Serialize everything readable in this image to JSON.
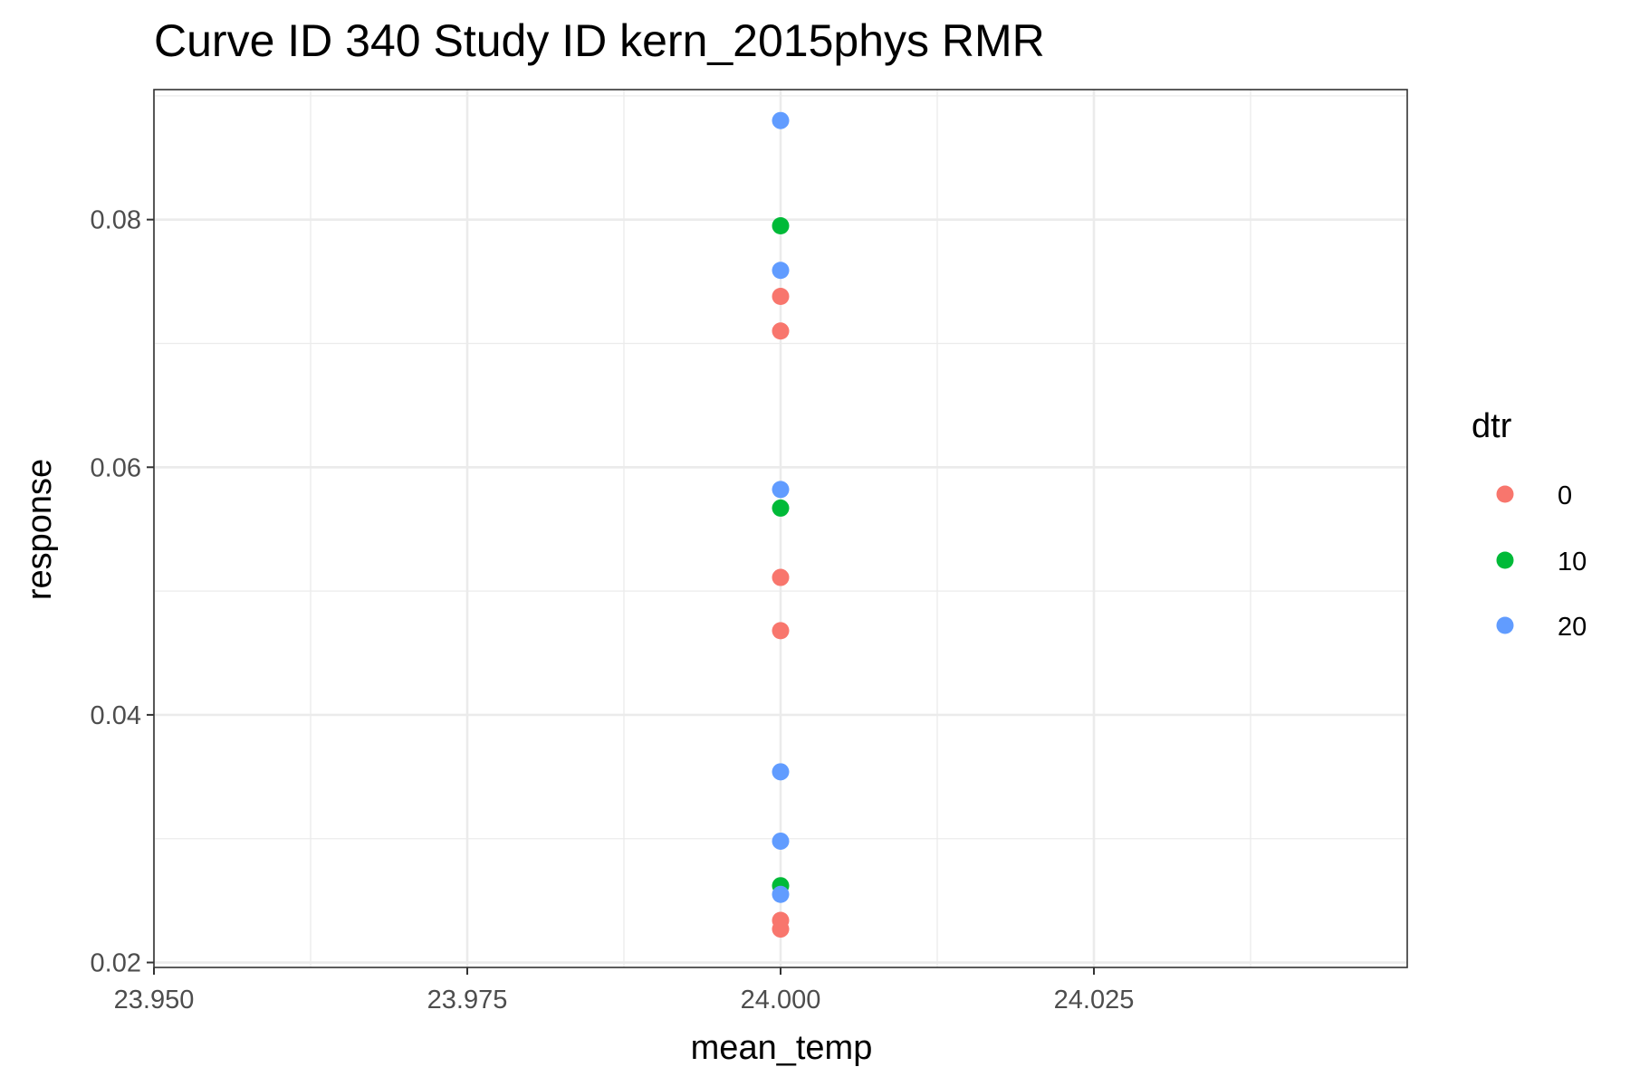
{
  "chart_data": {
    "type": "scatter",
    "title": "Curve ID 340 Study ID kern_2015phys RMR",
    "xlabel": "mean_temp",
    "ylabel": "response",
    "xlim": [
      23.95,
      24.05
    ],
    "ylim": [
      0.02,
      0.09
    ],
    "x_ticks": [
      "23.950",
      "23.975",
      "24.000",
      "24.025"
    ],
    "x_tick_values": [
      23.95,
      23.975,
      24.0,
      24.025
    ],
    "y_ticks": [
      "0.02",
      "0.04",
      "0.06",
      "0.08"
    ],
    "y_tick_values": [
      0.02,
      0.04,
      0.06,
      0.08
    ],
    "grid": true,
    "legend": {
      "title": "dtr",
      "position": "right"
    },
    "series": [
      {
        "name": "0",
        "color": "#F8766D",
        "points": [
          [
            24.0,
            0.0738
          ],
          [
            24.0,
            0.071
          ],
          [
            24.0,
            0.0511
          ],
          [
            24.0,
            0.0468
          ],
          [
            24.0,
            0.0234
          ],
          [
            24.0,
            0.0227
          ]
        ]
      },
      {
        "name": "10",
        "color": "#00BA38",
        "points": [
          [
            24.0,
            0.0795
          ],
          [
            24.0,
            0.0567
          ],
          [
            24.0,
            0.0262
          ]
        ]
      },
      {
        "name": "20",
        "color": "#619CFF",
        "points": [
          [
            24.0,
            0.088
          ],
          [
            24.0,
            0.0759
          ],
          [
            24.0,
            0.0582
          ],
          [
            24.0,
            0.0354
          ],
          [
            24.0,
            0.0298
          ],
          [
            24.0,
            0.0255
          ]
        ]
      }
    ]
  }
}
